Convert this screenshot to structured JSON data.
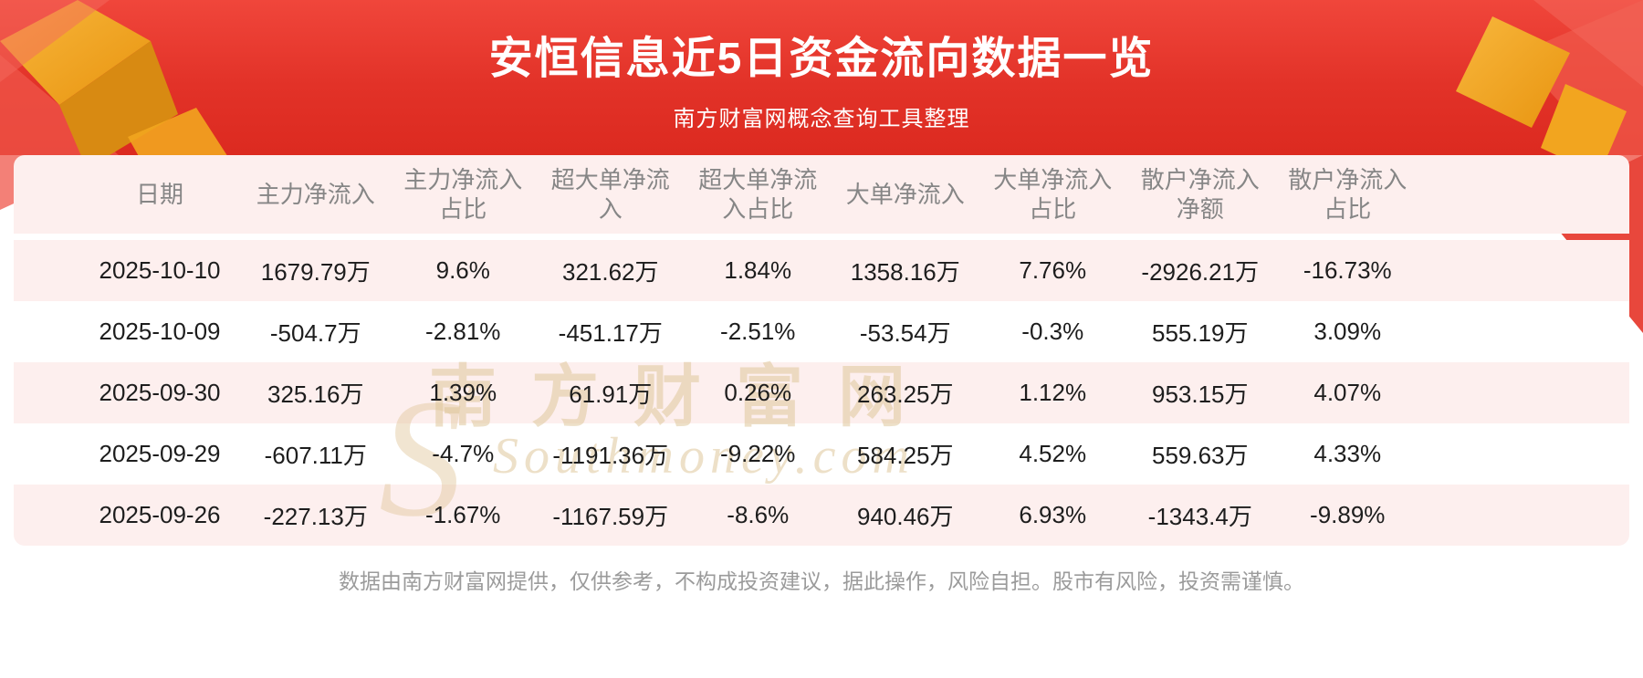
{
  "header": {
    "title": "安恒信息近5日资金流向数据一览",
    "subtitle": "南方财富网概念查询工具整理"
  },
  "chart_data": {
    "type": "table",
    "title": "安恒信息近5日资金流向数据一览",
    "columns": [
      "日期",
      "主力净流入",
      "主力净流入占比",
      "超大单净流入",
      "超大单净流入占比",
      "大单净流入",
      "大单净流入占比",
      "散户净流入净额",
      "散户净流入占比"
    ],
    "rows": [
      [
        "2025-10-10",
        "1679.79万",
        "9.6%",
        "321.62万",
        "1.84%",
        "1358.16万",
        "7.76%",
        "-2926.21万",
        "-16.73%"
      ],
      [
        "2025-10-09",
        "-504.7万",
        "-2.81%",
        "-451.17万",
        "-2.51%",
        "-53.54万",
        "-0.3%",
        "555.19万",
        "3.09%"
      ],
      [
        "2025-09-30",
        "325.16万",
        "1.39%",
        "61.91万",
        "0.26%",
        "263.25万",
        "1.12%",
        "953.15万",
        "4.07%"
      ],
      [
        "2025-09-29",
        "-607.11万",
        "-4.7%",
        "-1191.36万",
        "-9.22%",
        "584.25万",
        "4.52%",
        "559.63万",
        "4.33%"
      ],
      [
        "2025-09-26",
        "-227.13万",
        "-1.67%",
        "-1167.59万",
        "-8.6%",
        "940.46万",
        "6.93%",
        "-1343.4万",
        "-9.89%"
      ]
    ]
  },
  "watermark": {
    "cn": "南方财富网",
    "en": "Southmoney.com",
    "s": "S"
  },
  "footer": {
    "disclaimer": "数据由南方财富网提供，仅供参考，不构成投资建议，据此操作，风险自担。股市有风险，投资需谨慎。"
  },
  "colors": {
    "banner_red_top": "#f0463b",
    "banner_red_bottom": "#dc2a20",
    "row_pink": "#fdefee",
    "gold": "#f0a32a",
    "text_dark": "#1d1d1d",
    "header_gray": "#868686",
    "footer_gray": "#9b9b9b"
  }
}
